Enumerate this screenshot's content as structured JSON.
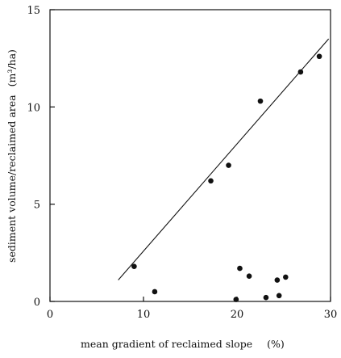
{
  "chart_data": {
    "type": "scatter",
    "title": "",
    "xlabel": "mean gradient of reclaimed slope",
    "xlabel_unit": "(%)",
    "ylabel": "sediment volume/reclaimed area",
    "ylabel_unit": "(m³/ha)",
    "xlim": [
      0,
      30
    ],
    "ylim": [
      0,
      15
    ],
    "x_ticks": [
      0,
      10,
      20,
      30
    ],
    "y_ticks": [
      0,
      5,
      10,
      15
    ],
    "grid": false,
    "legend": "none",
    "points": [
      {
        "x": 9.0,
        "y": 1.8
      },
      {
        "x": 11.2,
        "y": 0.5
      },
      {
        "x": 17.2,
        "y": 6.2
      },
      {
        "x": 19.1,
        "y": 7.0
      },
      {
        "x": 19.9,
        "y": 0.1
      },
      {
        "x": 20.3,
        "y": 1.7
      },
      {
        "x": 21.3,
        "y": 1.3
      },
      {
        "x": 22.5,
        "y": 10.3
      },
      {
        "x": 23.1,
        "y": 0.2
      },
      {
        "x": 24.3,
        "y": 1.1
      },
      {
        "x": 24.5,
        "y": 0.3
      },
      {
        "x": 25.2,
        "y": 1.25
      },
      {
        "x": 26.8,
        "y": 11.8
      },
      {
        "x": 28.8,
        "y": 12.6
      }
    ],
    "trend_line": {
      "x": [
        7.3,
        29.8
      ],
      "y": [
        1.1,
        13.5
      ]
    },
    "colors": {
      "marker": "#111111",
      "line": "#111111",
      "axis": "#111111"
    }
  }
}
